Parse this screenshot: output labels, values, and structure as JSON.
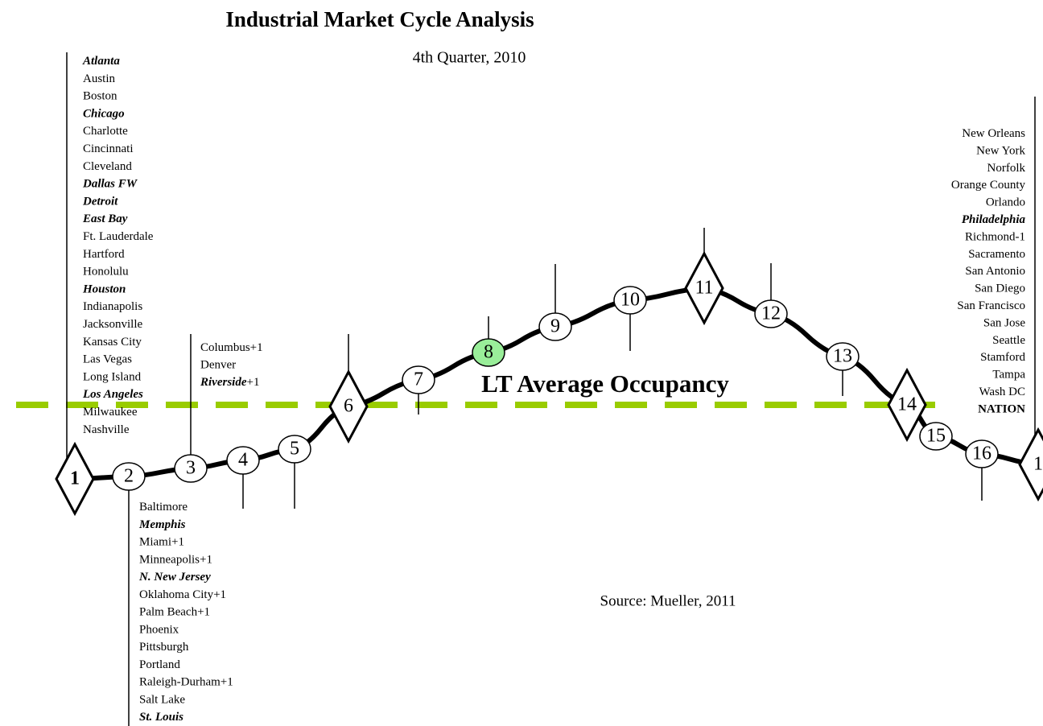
{
  "title": "Industrial Market Cycle Analysis",
  "subtitle": "4th Quarter, 2010",
  "reference_line": "LT Average Occupancy",
  "source": "Source: Mueller, 2011",
  "phases": [
    {
      "label": "1",
      "shape": "diamond"
    },
    {
      "label": "2"
    },
    {
      "label": "3"
    },
    {
      "label": "4"
    },
    {
      "label": "5"
    },
    {
      "label": "6",
      "shape": "diamond"
    },
    {
      "label": "7"
    },
    {
      "label": "8",
      "highlight": true
    },
    {
      "label": "9"
    },
    {
      "label": "10"
    },
    {
      "label": "11",
      "shape": "diamond"
    },
    {
      "label": "12"
    },
    {
      "label": "13"
    },
    {
      "label": "14",
      "shape": "diamond"
    },
    {
      "label": "15"
    },
    {
      "label": "16"
    },
    {
      "label": "1",
      "shape": "diamond"
    }
  ],
  "groups": [
    {
      "markets": [
        {
          "name": "Atlanta",
          "emphasis": true
        },
        {
          "name": "Austin"
        },
        {
          "name": "Boston"
        },
        {
          "name": "Chicago",
          "emphasis": true
        },
        {
          "name": "Charlotte"
        },
        {
          "name": "Cincinnati"
        },
        {
          "name": "Cleveland"
        },
        {
          "name": "Dallas FW",
          "emphasis": true
        },
        {
          "name": "Detroit",
          "emphasis": true
        },
        {
          "name": "East Bay",
          "emphasis": true
        },
        {
          "name": "Ft. Lauderdale"
        },
        {
          "name": "Hartford"
        },
        {
          "name": "Honolulu"
        },
        {
          "name": "Houston",
          "emphasis": true
        },
        {
          "name": "Indianapolis"
        },
        {
          "name": "Jacksonville"
        },
        {
          "name": "Kansas City"
        },
        {
          "name": "Las Vegas"
        },
        {
          "name": "Long Island"
        },
        {
          "name": "Los Angeles",
          "emphasis": true
        },
        {
          "name": "Milwaukee"
        },
        {
          "name": "Nashville"
        }
      ]
    },
    {
      "markets": [
        {
          "name": "Columbus+1"
        },
        {
          "name": "Denver"
        },
        {
          "name": "Riverside",
          "suffix": "+1",
          "emphasis": true
        }
      ]
    },
    {
      "markets": [
        {
          "name": "Baltimore"
        },
        {
          "name": "Memphis",
          "emphasis": true
        },
        {
          "name": "Miami+1"
        },
        {
          "name": "Minneapolis+1"
        },
        {
          "name": "N. New Jersey",
          "emphasis": true
        },
        {
          "name": "Oklahoma City+1"
        },
        {
          "name": "Palm Beach+1"
        },
        {
          "name": "Phoenix"
        },
        {
          "name": "Pittsburgh"
        },
        {
          "name": "Portland"
        },
        {
          "name": "Raleigh-Durham+1"
        },
        {
          "name": "Salt Lake"
        },
        {
          "name": "St. Louis",
          "emphasis": true
        }
      ]
    },
    {
      "markets": [
        {
          "name": "New Orleans"
        },
        {
          "name": "New York"
        },
        {
          "name": "Norfolk"
        },
        {
          "name": "Orange County"
        },
        {
          "name": "Orlando"
        },
        {
          "name": "Philadelphia",
          "emphasis": true
        },
        {
          "name": "Richmond-1"
        },
        {
          "name": "Sacramento"
        },
        {
          "name": "San Antonio"
        },
        {
          "name": "San Diego"
        },
        {
          "name": "San Francisco"
        },
        {
          "name": "San Jose"
        },
        {
          "name": "Seattle"
        },
        {
          "name": "Stamford"
        },
        {
          "name": "Tampa"
        },
        {
          "name": "Wash DC"
        },
        {
          "name": "NATION",
          "bold": true
        }
      ]
    }
  ]
}
